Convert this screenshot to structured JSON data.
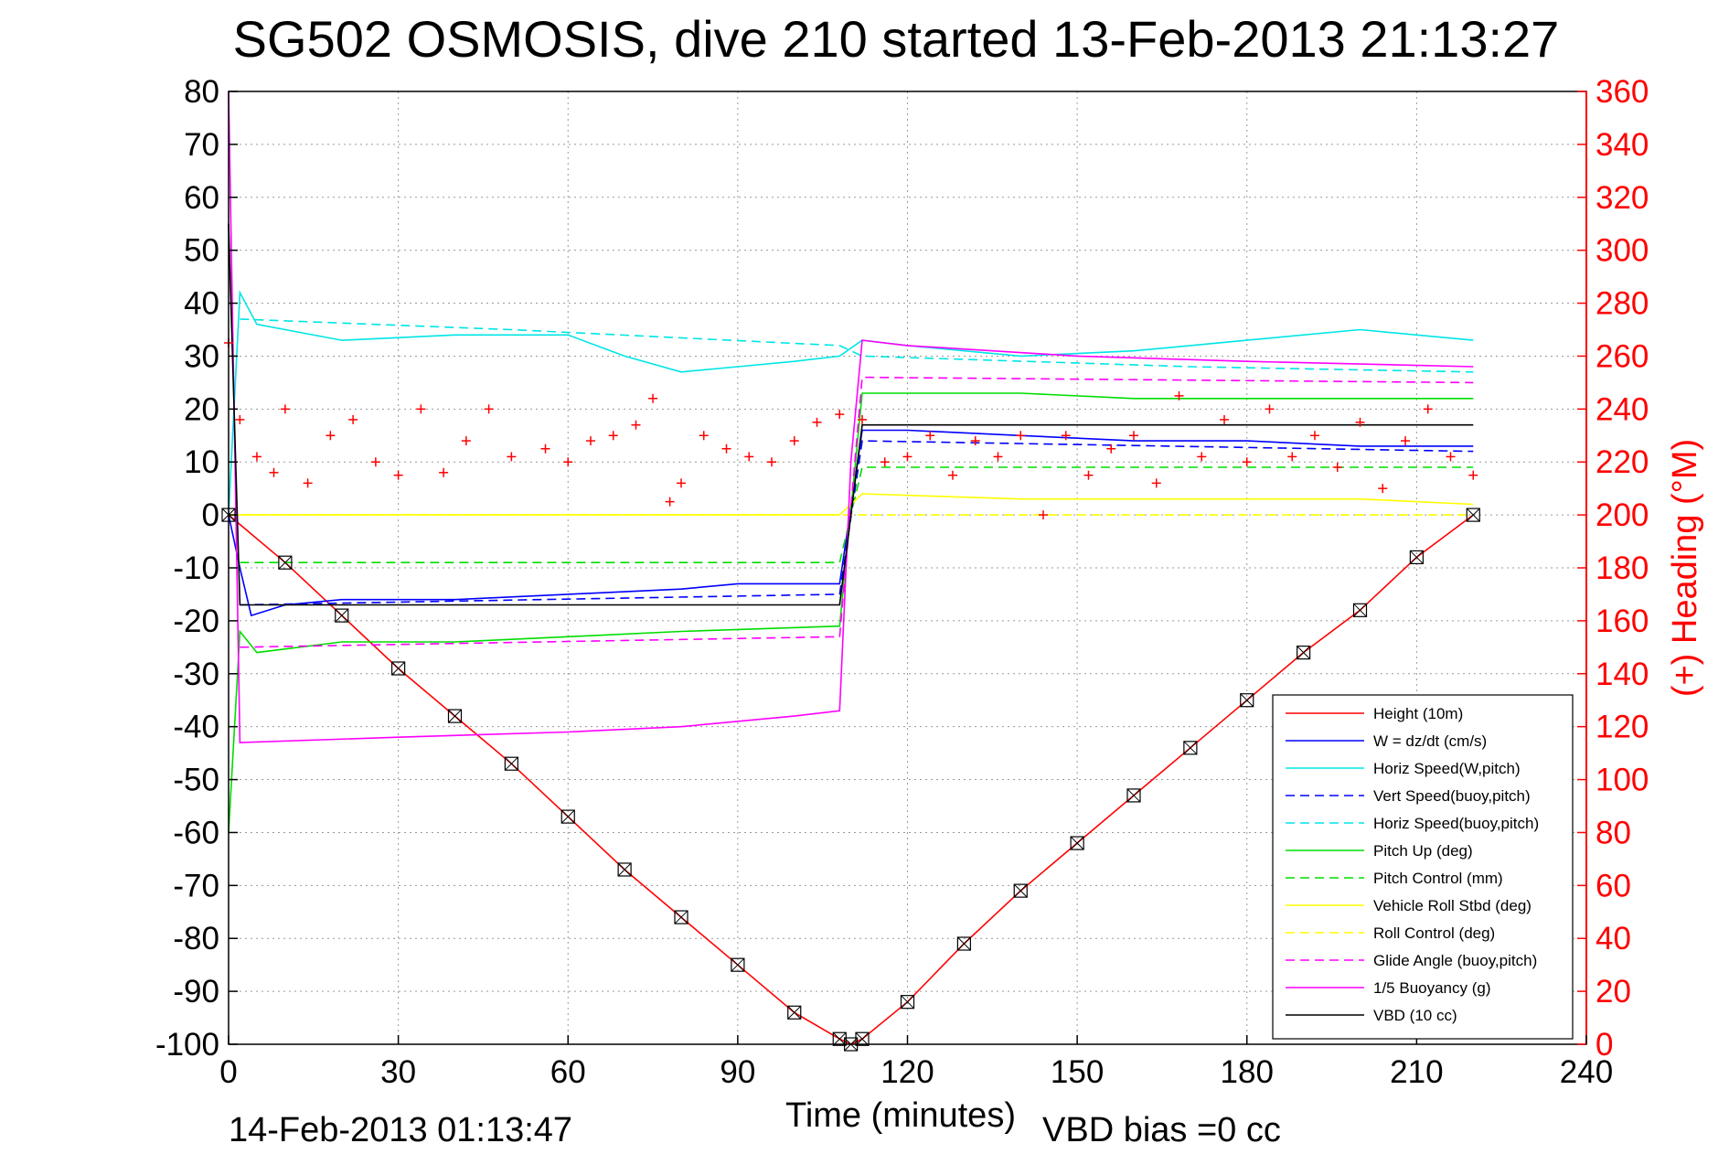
{
  "chart_data": {
    "type": "line",
    "title": "SG502 OSMOSIS, dive 210 started 13-Feb-2013 21:13:27",
    "xlabel": "Time (minutes)",
    "ylabel_right": "(+) Heading (°M)",
    "xlim": [
      0,
      240
    ],
    "ylim": [
      -100,
      80
    ],
    "ylim_right": [
      0,
      360
    ],
    "x_ticks": [
      "0",
      "30",
      "60",
      "90",
      "120",
      "150",
      "180",
      "210",
      "240"
    ],
    "y_ticks": [
      "80",
      "70",
      "60",
      "50",
      "40",
      "30",
      "20",
      "10",
      "0",
      "-10",
      "-20",
      "-30",
      "-40",
      "-50",
      "-60",
      "-70",
      "-80",
      "-90",
      "-100"
    ],
    "y_right_ticks": [
      "360",
      "340",
      "320",
      "300",
      "280",
      "260",
      "240",
      "220",
      "200",
      "180",
      "160",
      "140",
      "120",
      "100",
      "80",
      "60",
      "40",
      "20",
      "0"
    ],
    "grid": true,
    "legend_position": "bottom-right",
    "footer_left": "14-Feb-2013 01:13:47",
    "footer_right": "VBD bias =0 cc",
    "colors": {
      "height": "#ff0000",
      "w": "#0000ff",
      "horiz": "#00e5e5",
      "pitch": "#00dd00",
      "roll": "#ffff00",
      "glide": "#ff00ff",
      "vbd": "#000000",
      "heading": "#ff0000"
    },
    "series": [
      {
        "name": "Height (10m)",
        "color": "#ff0000",
        "dash": false,
        "x": [
          0,
          10,
          20,
          30,
          40,
          50,
          60,
          70,
          80,
          90,
          100,
          108,
          110,
          112,
          120,
          130,
          140,
          150,
          160,
          170,
          180,
          190,
          200,
          210,
          220
        ],
        "y": [
          0,
          -9,
          -19,
          -29,
          -38,
          -47,
          -57,
          -67,
          -76,
          -85,
          -94,
          -99,
          -100,
          -99,
          -92,
          -81,
          -71,
          -62,
          -53,
          -44,
          -35,
          -26,
          -18,
          -8,
          0
        ]
      },
      {
        "name": "W = dz/dt (cm/s)",
        "color": "#0000ff",
        "dash": false,
        "x": [
          0,
          2,
          4,
          10,
          20,
          40,
          60,
          80,
          90,
          108,
          112,
          120,
          140,
          160,
          180,
          200,
          220
        ],
        "y": [
          0,
          -10,
          -19,
          -17,
          -16,
          -16,
          -15,
          -14,
          -13,
          -13,
          16,
          16,
          15,
          14,
          14,
          13,
          13
        ]
      },
      {
        "name": "Horiz Speed(W,pitch)",
        "color": "#00e5e5",
        "dash": false,
        "x": [
          0,
          2,
          5,
          20,
          40,
          60,
          70,
          80,
          90,
          100,
          108,
          112,
          120,
          140,
          160,
          180,
          200,
          220
        ],
        "y": [
          0,
          42,
          36,
          33,
          34,
          34,
          30,
          27,
          28,
          29,
          30,
          33,
          32,
          30,
          31,
          33,
          35,
          33
        ]
      },
      {
        "name": "Vert Speed(buoy,pitch)",
        "color": "#0000ff",
        "dash": true,
        "x": [
          2,
          108,
          112,
          220
        ],
        "y": [
          -17,
          -15,
          14,
          12
        ]
      },
      {
        "name": "Horiz Speed(buoy,pitch)",
        "color": "#00e5e5",
        "dash": true,
        "x": [
          2,
          50,
          108,
          112,
          170,
          220
        ],
        "y": [
          37,
          35,
          32,
          30,
          28,
          27
        ]
      },
      {
        "name": "Pitch Up (deg)",
        "color": "#00dd00",
        "dash": false,
        "x": [
          0,
          2,
          5,
          20,
          40,
          60,
          80,
          108,
          112,
          140,
          160,
          180,
          200,
          220
        ],
        "y": [
          -60,
          -22,
          -26,
          -24,
          -24,
          -23,
          -22,
          -21,
          23,
          23,
          22,
          22,
          22,
          22
        ]
      },
      {
        "name": "Pitch Control (mm)",
        "color": "#00dd00",
        "dash": true,
        "x": [
          2,
          108,
          112,
          220
        ],
        "y": [
          -9,
          -9,
          9,
          9
        ]
      },
      {
        "name": "Vehicle Roll Stbd (deg)",
        "color": "#ffff00",
        "dash": false,
        "x": [
          0,
          20,
          40,
          60,
          80,
          100,
          108,
          112,
          140,
          160,
          180,
          200,
          220
        ],
        "y": [
          0,
          0,
          0,
          0,
          0,
          0,
          0,
          4,
          3,
          3,
          3,
          3,
          2
        ]
      },
      {
        "name": "Roll Control (deg)",
        "color": "#ffff00",
        "dash": true,
        "x": [
          0,
          220
        ],
        "y": [
          0,
          0
        ]
      },
      {
        "name": "Glide Angle (buoy,pitch)",
        "color": "#ff00ff",
        "dash": true,
        "x": [
          2,
          108,
          112,
          220
        ],
        "y": [
          -25,
          -23,
          26,
          25
        ]
      },
      {
        "name": "1/5 Buoyancy (g)",
        "color": "#ff00ff",
        "dash": false,
        "x": [
          0,
          2,
          30,
          60,
          80,
          100,
          108,
          110,
          112,
          120,
          150,
          180,
          220
        ],
        "y": [
          80,
          -43,
          -42,
          -41,
          -40,
          -38,
          -37,
          10,
          33,
          32,
          30,
          29,
          28
        ]
      },
      {
        "name": "VBD (10 cc)",
        "color": "#000000",
        "dash": false,
        "x": [
          0,
          2,
          108,
          112,
          220
        ],
        "y": [
          55,
          -17,
          -17,
          17,
          17
        ]
      }
    ],
    "heading_series": {
      "name": "(+) Heading",
      "color": "#ff0000",
      "x": [
        0,
        2,
        5,
        8,
        10,
        14,
        18,
        22,
        26,
        30,
        34,
        38,
        42,
        46,
        50,
        56,
        60,
        64,
        68,
        72,
        75,
        78,
        80,
        84,
        88,
        92,
        96,
        100,
        104,
        108,
        112,
        116,
        120,
        124,
        128,
        132,
        136,
        140,
        144,
        148,
        152,
        156,
        160,
        164,
        168,
        172,
        176,
        180,
        184,
        188,
        192,
        196,
        200,
        204,
        208,
        212,
        216,
        220
      ],
      "y": [
        265,
        236,
        222,
        216,
        240,
        212,
        230,
        236,
        220,
        215,
        240,
        216,
        228,
        240,
        222,
        225,
        220,
        228,
        230,
        234,
        244,
        205,
        212,
        230,
        225,
        222,
        220,
        228,
        235,
        238,
        236,
        220,
        222,
        230,
        215,
        228,
        222,
        230,
        200,
        230,
        215,
        225,
        230,
        212,
        245,
        222,
        236,
        220,
        240,
        222,
        230,
        218,
        235,
        210,
        228,
        240,
        222,
        215
      ]
    }
  }
}
